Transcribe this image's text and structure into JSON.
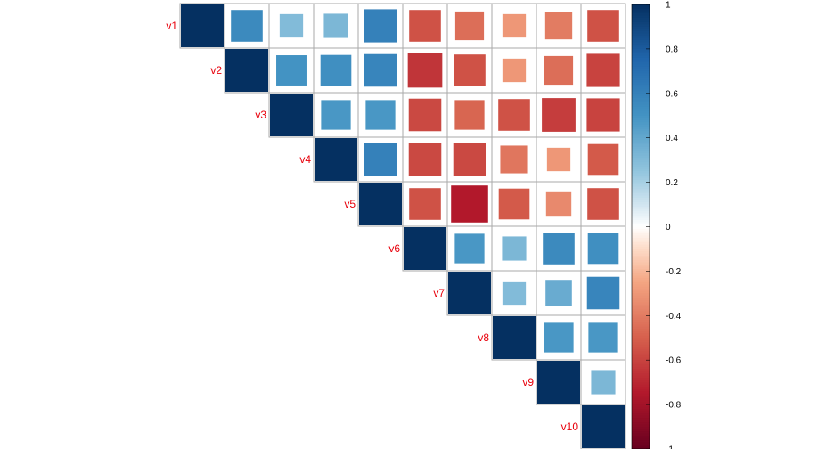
{
  "chart_data": {
    "type": "heatmap",
    "method": "square",
    "shape": "upper-triangle",
    "variables": [
      "v1",
      "v2",
      "v3",
      "v4",
      "v5",
      "v6",
      "v7",
      "v8",
      "v9",
      "v10"
    ],
    "matrix": [
      [
        1.0,
        0.55,
        0.3,
        0.32,
        0.6,
        -0.55,
        -0.45,
        -0.3,
        -0.4,
        -0.55
      ],
      [
        0.55,
        1.0,
        0.5,
        0.52,
        0.58,
        -0.65,
        -0.55,
        -0.3,
        -0.45,
        -0.6
      ],
      [
        0.3,
        0.5,
        1.0,
        0.48,
        0.48,
        -0.58,
        -0.48,
        -0.55,
        -0.62,
        -0.6
      ],
      [
        0.32,
        0.52,
        0.48,
        1.0,
        0.6,
        -0.58,
        -0.58,
        -0.42,
        -0.3,
        -0.52
      ],
      [
        0.6,
        0.58,
        0.48,
        0.6,
        1.0,
        -0.55,
        -0.75,
        -0.52,
        -0.35,
        -0.55
      ],
      [
        -0.55,
        -0.65,
        -0.58,
        -0.58,
        -0.55,
        1.0,
        0.48,
        0.32,
        0.55,
        0.52
      ],
      [
        -0.45,
        -0.55,
        -0.48,
        -0.58,
        -0.75,
        0.48,
        1.0,
        0.3,
        0.38,
        0.58
      ],
      [
        -0.3,
        -0.3,
        -0.55,
        -0.42,
        -0.52,
        0.32,
        0.3,
        1.0,
        0.48,
        0.48
      ],
      [
        -0.4,
        -0.45,
        -0.62,
        -0.3,
        -0.35,
        0.55,
        0.38,
        0.48,
        1.0,
        0.32
      ],
      [
        -0.55,
        -0.6,
        -0.6,
        -0.52,
        -0.55,
        0.52,
        0.58,
        0.48,
        0.32,
        1.0
      ]
    ],
    "color_scale": {
      "range": [
        -1,
        1
      ],
      "ticks": [
        "1",
        "0.8",
        "0.6",
        "0.4",
        "0.2",
        "0",
        "-0.2",
        "-0.4",
        "-0.6",
        "-0.8",
        "-1"
      ],
      "tick_values": [
        1,
        0.8,
        0.6,
        0.4,
        0.2,
        0,
        -0.2,
        -0.4,
        -0.6,
        -0.8,
        -1
      ],
      "stops": [
        {
          "value": -1.0,
          "color": "#67001f"
        },
        {
          "value": -0.75,
          "color": "#b2182b"
        },
        {
          "value": -0.5,
          "color": "#d6604d"
        },
        {
          "value": -0.25,
          "color": "#f4a582"
        },
        {
          "value": -0.1,
          "color": "#fddbc7"
        },
        {
          "value": 0.0,
          "color": "#ffffff"
        },
        {
          "value": 0.1,
          "color": "#d1e5f0"
        },
        {
          "value": 0.25,
          "color": "#92c5de"
        },
        {
          "value": 0.5,
          "color": "#4393c3"
        },
        {
          "value": 0.75,
          "color": "#2166ac"
        },
        {
          "value": 1.0,
          "color": "#053061"
        }
      ]
    },
    "label_color": "#e8000b",
    "grid_color": "#aaaaaa",
    "legend_placement": "right"
  }
}
